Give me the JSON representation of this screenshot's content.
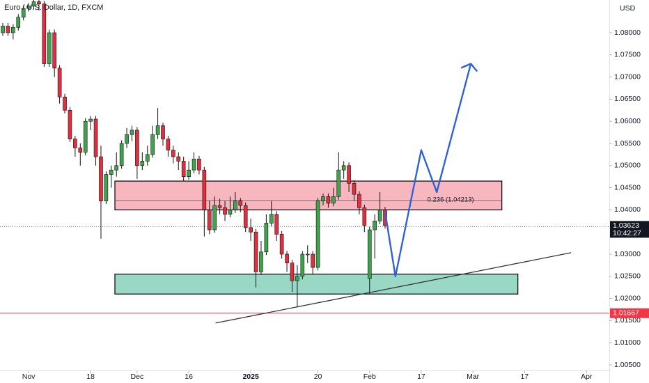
{
  "chart_data": {
    "type": "candlestick",
    "title": "Euro / U.S. Dollar, 1D, FXCM",
    "currency": "USD",
    "up_color": "#3fa34d",
    "down_color": "#e0303f",
    "xlim": [
      -0.54,
      117.4
    ],
    "ylim": [
      1.00374,
      1.08739
    ],
    "xticks": [
      {
        "value": 5,
        "label": "Nov"
      },
      {
        "value": 17,
        "label": "18"
      },
      {
        "value": 26,
        "label": "Dec"
      },
      {
        "value": 36,
        "label": "16"
      },
      {
        "value": 48,
        "label": "2025"
      },
      {
        "value": 61,
        "label": "20"
      },
      {
        "value": 71,
        "label": "Feb"
      },
      {
        "value": 81,
        "label": "17"
      },
      {
        "value": 91,
        "label": "Mar"
      },
      {
        "value": 101,
        "label": "17"
      },
      {
        "value": 113,
        "label": "Apr"
      }
    ],
    "yticks": [
      {
        "value": 1.005,
        "label": "1.00500"
      },
      {
        "value": 1.01,
        "label": "1.01000"
      },
      {
        "value": 1.015,
        "label": "1.01500"
      },
      {
        "value": 1.02,
        "label": "1.02000"
      },
      {
        "value": 1.025,
        "label": "1.02500"
      },
      {
        "value": 1.03,
        "label": "1.03000"
      },
      {
        "value": 1.04,
        "label": "1.04000"
      },
      {
        "value": 1.045,
        "label": "1.04500"
      },
      {
        "value": 1.05,
        "label": "1.05000"
      },
      {
        "value": 1.055,
        "label": "1.05500"
      },
      {
        "value": 1.06,
        "label": "1.06000"
      },
      {
        "value": 1.065,
        "label": "1.06500"
      },
      {
        "value": 1.07,
        "label": "1.07000"
      },
      {
        "value": 1.075,
        "label": "1.07500"
      },
      {
        "value": 1.08,
        "label": "1.08000"
      }
    ],
    "open": [
      1.08,
      1.0815,
      1.08,
      1.0812,
      1.0835,
      1.0855,
      1.086,
      1.087,
      1.0865,
      1.073,
      1.08,
      1.072,
      1.0655,
      1.0625,
      1.056,
      1.054,
      1.053,
      1.06,
      1.0605,
      1.052,
      1.042,
      1.048,
      1.049,
      1.05,
      1.055,
      1.057,
      1.058,
      1.05,
      1.051,
      1.0525,
      1.057,
      1.059,
      1.056,
      1.0535,
      1.052,
      1.051,
      1.0475,
      1.049,
      1.0515,
      1.049,
      1.04,
      1.0355,
      1.041,
      1.0405,
      1.039,
      1.04,
      1.042,
      1.041,
      1.036,
      1.035,
      1.026,
      1.0305,
      1.037,
      1.039,
      1.0345,
      1.03,
      1.028,
      1.024,
      1.025,
      1.03,
      1.03,
      1.027,
      1.042,
      1.043,
      1.0415,
      1.043,
      1.049,
      1.05,
      1.046,
      1.0435,
      1.0405,
      1.0245,
      1.0355,
      1.0375,
      1.04
    ],
    "high": [
      1.0822,
      1.0822,
      1.0819,
      1.0842,
      1.0862,
      1.0867,
      1.0877,
      1.0877,
      1.0872,
      1.0807,
      1.0807,
      1.0727,
      1.0662,
      1.0632,
      1.0567,
      1.055,
      1.0607,
      1.0612,
      1.0612,
      1.0545,
      1.0487,
      1.05,
      1.053,
      1.0557,
      1.0585,
      1.059,
      1.0587,
      1.053,
      1.0545,
      1.059,
      1.063,
      1.0597,
      1.0567,
      1.0545,
      1.053,
      1.052,
      1.051,
      1.053,
      1.0522,
      1.0497,
      1.042,
      1.043,
      1.0425,
      1.042,
      1.043,
      1.044,
      1.0427,
      1.0417,
      1.038,
      1.0357,
      1.033,
      1.039,
      1.042,
      1.0397,
      1.0352,
      1.0307,
      1.0287,
      1.0275,
      1.0307,
      1.032,
      1.0307,
      1.0427,
      1.0437,
      1.0437,
      1.045,
      1.053,
      1.051,
      1.0507,
      1.0467,
      1.0442,
      1.0412,
      1.0362,
      1.039,
      1.044,
      1.0407
    ],
    "low": [
      1.0793,
      1.0793,
      1.0785,
      1.0805,
      1.0828,
      1.0848,
      1.0853,
      1.085,
      1.0723,
      1.0723,
      1.07,
      1.064,
      1.0618,
      1.0553,
      1.052,
      1.05,
      1.0523,
      1.058,
      1.05,
      1.0335,
      1.0413,
      1.045,
      1.0475,
      1.0493,
      1.054,
      1.0555,
      1.047,
      1.049,
      1.05,
      1.0518,
      1.056,
      1.0545,
      1.052,
      1.0505,
      1.049,
      1.0465,
      1.0468,
      1.0483,
      1.048,
      1.034,
      1.0345,
      1.0348,
      1.039,
      1.0375,
      1.0383,
      1.0393,
      1.0395,
      1.035,
      1.033,
      1.0225,
      1.0253,
      1.0298,
      1.0363,
      1.033,
      1.029,
      1.026,
      1.0215,
      1.018,
      1.0243,
      1.028,
      1.0255,
      1.0263,
      1.041,
      1.0405,
      1.0408,
      1.0423,
      1.047,
      1.044,
      1.042,
      1.039,
      1.035,
      1.021,
      1.029,
      1.0368,
      1.0358
    ],
    "close": [
      1.0815,
      1.08,
      1.0812,
      1.0835,
      1.0855,
      1.086,
      1.087,
      1.0865,
      1.073,
      1.08,
      1.072,
      1.0655,
      1.0625,
      1.056,
      1.054,
      1.053,
      1.06,
      1.0605,
      1.052,
      1.042,
      1.048,
      1.049,
      1.05,
      1.055,
      1.057,
      1.058,
      1.05,
      1.051,
      1.0525,
      1.057,
      1.059,
      1.056,
      1.0535,
      1.052,
      1.051,
      1.0475,
      1.049,
      1.0515,
      1.049,
      1.04,
      1.0355,
      1.041,
      1.0405,
      1.039,
      1.04,
      1.042,
      1.041,
      1.036,
      1.035,
      1.026,
      1.0305,
      1.037,
      1.039,
      1.0345,
      1.03,
      1.028,
      1.024,
      1.025,
      1.03,
      1.03,
      1.027,
      1.042,
      1.043,
      1.0415,
      1.043,
      1.049,
      1.05,
      1.046,
      1.0435,
      1.0405,
      1.0365,
      1.0355,
      1.0375,
      1.04,
      1.0365
    ],
    "current_price": {
      "value": 1.03623,
      "label": "1.03623",
      "countdown": "10:42:27"
    },
    "support_line": {
      "value": 1.01667,
      "label": "1.01667",
      "color": "#f23645"
    },
    "fib_level": {
      "value": 1.04213,
      "label": "0.236 (1.04213)",
      "x": [
        21.7,
        96.6
      ]
    },
    "zones": [
      {
        "x": [
          21.7,
          96.6
        ],
        "y": [
          1.04,
          1.0465
        ],
        "color": "#f8b7be"
      },
      {
        "x": [
          21.7,
          99.7
        ],
        "y": [
          1.021,
          1.0255
        ],
        "color": "#9ad8c6"
      }
    ],
    "trend_line": {
      "x": [
        41.2,
        110
      ],
      "y": [
        1.01445,
        1.03033
      ],
      "color": "#333333"
    },
    "projection": {
      "x": [
        74,
        76,
        81,
        84,
        90.6
      ],
      "y": [
        1.0395,
        1.025,
        1.0535,
        1.044,
        1.073
      ],
      "color": "#2f62d6"
    }
  }
}
